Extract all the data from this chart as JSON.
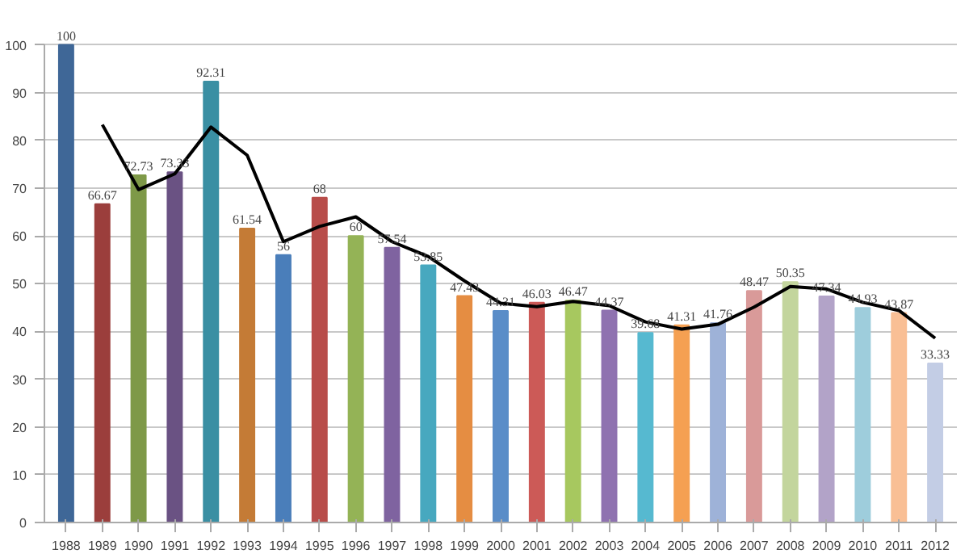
{
  "chart_data": {
    "type": "bar",
    "categories": [
      "1988",
      "1989",
      "1990",
      "1991",
      "1992",
      "1993",
      "1994",
      "1995",
      "1996",
      "1997",
      "1998",
      "1999",
      "2000",
      "2001",
      "2002",
      "2003",
      "2004",
      "2005",
      "2006",
      "2007",
      "2008",
      "2009",
      "2010",
      "2011",
      "2012"
    ],
    "series": [
      {
        "value_labels": [
          "100",
          "66.67",
          "72.73",
          "73.33",
          "92.31",
          "61.54",
          "56",
          "68",
          "60",
          "57.54",
          "53.85",
          "47.43",
          "44.31",
          "46.03",
          "46.47",
          "44.37",
          "39.68",
          "41.31",
          "41.76",
          "48.47",
          "50.35",
          "47.34",
          "44.93",
          "43.87",
          "33.33"
        ],
        "values": [
          100,
          66.67,
          72.73,
          73.33,
          92.31,
          61.54,
          56,
          68,
          60,
          57.54,
          53.85,
          47.43,
          44.31,
          46.03,
          46.47,
          44.37,
          39.68,
          41.31,
          41.76,
          48.47,
          50.35,
          47.34,
          44.93,
          43.87,
          33.33
        ],
        "colors": [
          "#3f6797",
          "#9b3e3c",
          "#7e9948",
          "#6a5283",
          "#3a8fa3",
          "#c47b36",
          "#4a7eba",
          "#b84d4a",
          "#94b356",
          "#7f63a0",
          "#47a8bf",
          "#e58d42",
          "#5a8dc8",
          "#cc5a57",
          "#a7c85f",
          "#8f72b0",
          "#56b9d0",
          "#f5a052",
          "#9eb2d8",
          "#d99a99",
          "#c3d59d",
          "#b2a3c8",
          "#9ecddc",
          "#f9bf95",
          "#c3cde5"
        ]
      },
      {
        "type": "line",
        "color": "#000000",
        "values": [
          null,
          83.3,
          69.7,
          73.0,
          82.8,
          76.9,
          58.8,
          62.0,
          64.0,
          58.8,
          55.7,
          50.6,
          45.9,
          45.2,
          46.3,
          45.4,
          42.0,
          40.5,
          41.5,
          45.1,
          49.4,
          48.9,
          46.1,
          44.4,
          38.6
        ]
      }
    ],
    "ylim": [
      0,
      100
    ],
    "yticks": [
      0,
      10,
      20,
      30,
      40,
      50,
      60,
      70,
      80,
      90,
      100
    ],
    "grid": "y",
    "marker": "none",
    "line_style": "solid"
  }
}
